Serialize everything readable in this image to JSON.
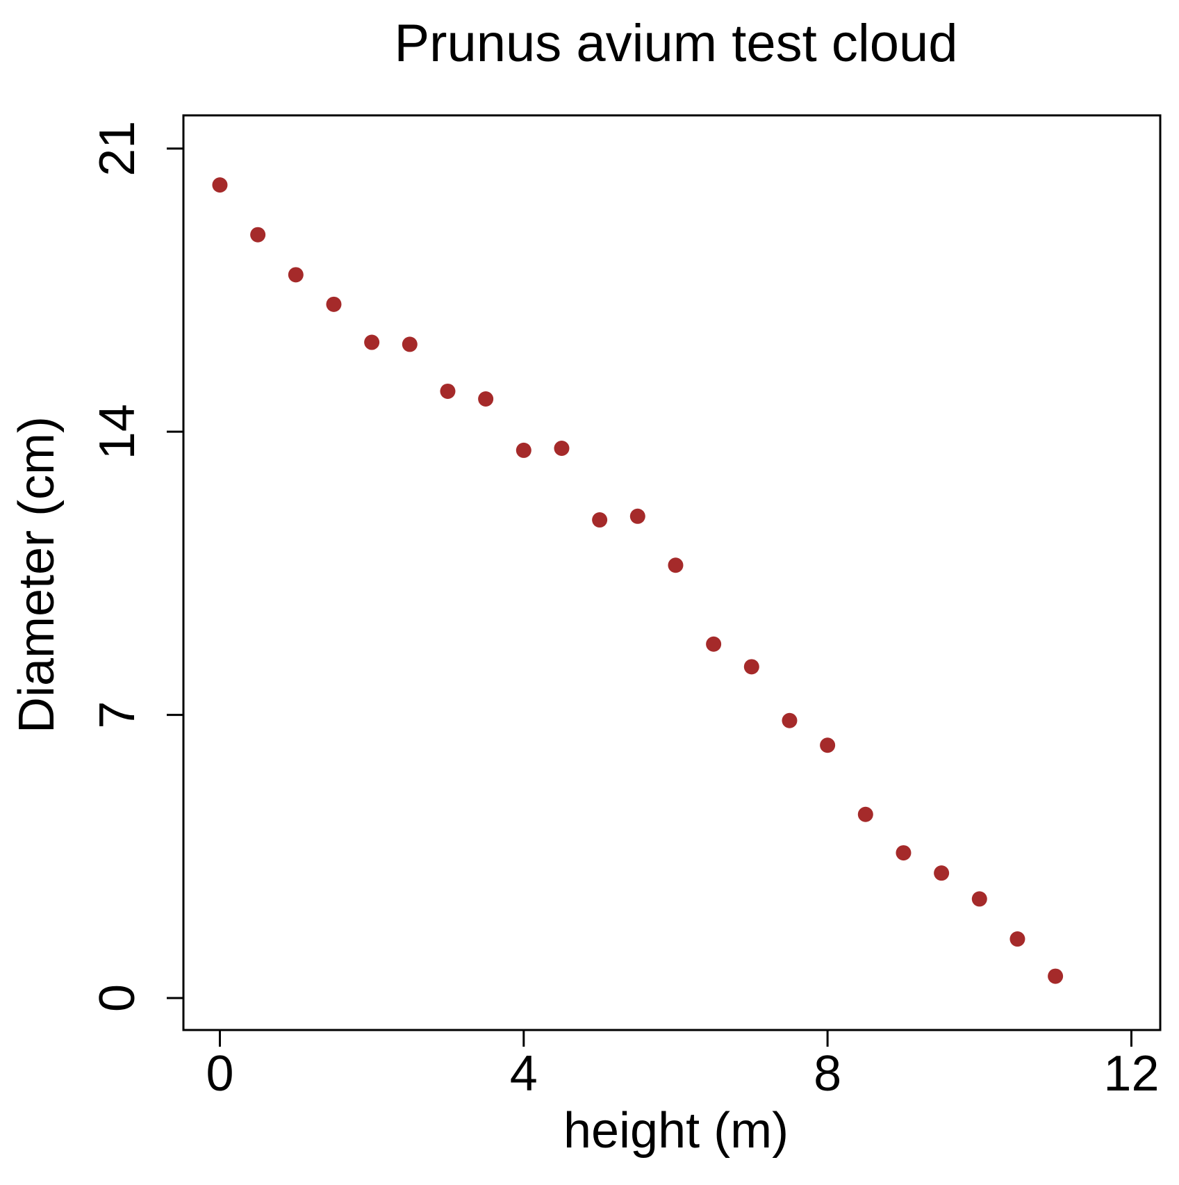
{
  "chart_data": {
    "type": "scatter",
    "title": "Prunus avium test cloud",
    "x_label": "height (m)",
    "y_label": "Diameter (cm)",
    "x": [
      0,
      0.5,
      1,
      1.5,
      2,
      2.5,
      3,
      3.5,
      4,
      4.5,
      5,
      5.5,
      6,
      6.5,
      7,
      7.5,
      8,
      8.5,
      9,
      9.5,
      10,
      10.5,
      11
    ],
    "values": [
      20.1,
      18.87,
      17.88,
      17.15,
      16.21,
      16.16,
      15.0,
      14.81,
      13.54,
      13.59,
      11.82,
      11.91,
      10.7,
      8.75,
      8.19,
      6.86,
      6.25,
      4.54,
      3.59,
      3.09,
      2.45,
      1.46,
      0.54
    ],
    "color": "#a52a2a",
    "xlim": [
      -0.48,
      12.38
    ],
    "xticks": [
      0,
      4,
      8,
      12
    ],
    "ylim": [
      -0.79,
      21.82
    ],
    "yticks": [
      0,
      7,
      14,
      21
    ]
  }
}
